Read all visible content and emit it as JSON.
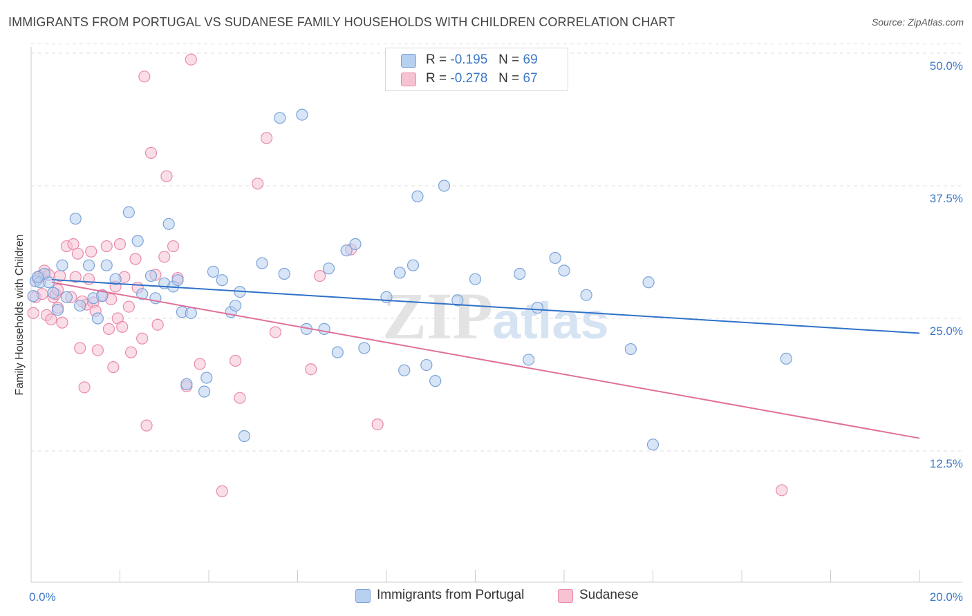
{
  "title": "IMMIGRANTS FROM PORTUGAL VS SUDANESE FAMILY HOUSEHOLDS WITH CHILDREN CORRELATION CHART",
  "source": "Source: ZipAtlas.com",
  "watermark": {
    "zip": "ZIP",
    "atlas": "atlas"
  },
  "legend": {
    "rows": [
      {
        "r_label": "R =",
        "r_value": "-0.195",
        "n_label": "N =",
        "n_value": "69"
      },
      {
        "r_label": "R =",
        "r_value": "-0.278",
        "n_label": "N =",
        "n_value": "67"
      }
    ]
  },
  "colors": {
    "blue_fill": "#b8d0f0",
    "blue_stroke": "#7aa3d8",
    "blue_line": "#3072c8",
    "pink_fill": "#f6c3d3",
    "pink_stroke": "#e98aaa",
    "pink_line": "#e0709a",
    "tick_text": "#3c78c8",
    "grid": "#dddddd"
  },
  "chart_data": {
    "type": "scatter",
    "title": "IMMIGRANTS FROM PORTUGAL VS SUDANESE FAMILY HOUSEHOLDS WITH CHILDREN CORRELATION CHART",
    "xlabel": "",
    "ylabel": "Family Households with Children",
    "xlim": [
      0,
      20
    ],
    "ylim": [
      0,
      51
    ],
    "x_tick_labels": [
      "0.0%",
      "20.0%"
    ],
    "y_ticks": [
      12.5,
      25.0,
      37.5,
      50.0
    ],
    "y_tick_labels": [
      "12.5%",
      "25.0%",
      "37.5%",
      "50.0%"
    ],
    "grid": "horizontal dashed",
    "legend_position": "top-center",
    "series": [
      {
        "name": "Immigrants from Portugal",
        "color": "#b8d0f0",
        "stats": {
          "R": -0.195,
          "N": 69
        },
        "trend": {
          "x": [
            0,
            20
          ],
          "y": [
            28.9,
            23.6
          ]
        },
        "points": [
          [
            0.05,
            27.1
          ],
          [
            0.1,
            28.5
          ],
          [
            0.2,
            28.4
          ],
          [
            0.3,
            29.2
          ],
          [
            0.4,
            28.4
          ],
          [
            0.5,
            27.4
          ],
          [
            0.6,
            25.8
          ],
          [
            0.7,
            30.0
          ],
          [
            0.8,
            27.0
          ],
          [
            1.0,
            34.4
          ],
          [
            1.1,
            26.2
          ],
          [
            1.3,
            30.0
          ],
          [
            1.4,
            26.9
          ],
          [
            1.5,
            25.0
          ],
          [
            1.6,
            27.1
          ],
          [
            1.7,
            30.0
          ],
          [
            1.9,
            28.7
          ],
          [
            2.2,
            35.0
          ],
          [
            2.4,
            32.3
          ],
          [
            2.5,
            27.3
          ],
          [
            2.7,
            29.0
          ],
          [
            2.8,
            26.9
          ],
          [
            3.0,
            28.3
          ],
          [
            3.1,
            33.9
          ],
          [
            3.2,
            28.0
          ],
          [
            3.3,
            28.6
          ],
          [
            3.4,
            25.6
          ],
          [
            3.5,
            18.8
          ],
          [
            3.6,
            25.5
          ],
          [
            3.9,
            18.1
          ],
          [
            3.95,
            19.4
          ],
          [
            4.1,
            29.4
          ],
          [
            4.3,
            28.6
          ],
          [
            4.5,
            25.6
          ],
          [
            4.6,
            26.2
          ],
          [
            4.7,
            27.5
          ],
          [
            4.8,
            13.9
          ],
          [
            5.2,
            30.2
          ],
          [
            5.6,
            43.9
          ],
          [
            5.7,
            29.2
          ],
          [
            6.1,
            44.2
          ],
          [
            6.2,
            24.0
          ],
          [
            6.6,
            24.0
          ],
          [
            6.7,
            29.7
          ],
          [
            6.9,
            21.8
          ],
          [
            7.1,
            31.4
          ],
          [
            7.3,
            32.0
          ],
          [
            7.5,
            22.2
          ],
          [
            8.0,
            27.0
          ],
          [
            8.3,
            29.3
          ],
          [
            8.4,
            20.1
          ],
          [
            8.6,
            30.0
          ],
          [
            8.7,
            36.5
          ],
          [
            8.9,
            20.6
          ],
          [
            9.1,
            19.1
          ],
          [
            9.3,
            37.5
          ],
          [
            9.6,
            26.7
          ],
          [
            10.0,
            28.7
          ],
          [
            11.0,
            29.2
          ],
          [
            11.2,
            21.1
          ],
          [
            11.4,
            26.0
          ],
          [
            11.8,
            30.7
          ],
          [
            12.0,
            29.5
          ],
          [
            12.5,
            27.2
          ],
          [
            13.5,
            22.1
          ],
          [
            13.9,
            28.4
          ],
          [
            14.0,
            13.1
          ],
          [
            17.0,
            21.2
          ],
          [
            0.15,
            28.9
          ]
        ]
      },
      {
        "name": "Sudanese",
        "color": "#f6c3d3",
        "stats": {
          "R": -0.278,
          "N": 67
        },
        "trend": {
          "x": [
            0,
            20
          ],
          "y": [
            29.1,
            13.7
          ]
        },
        "points": [
          [
            0.05,
            25.5
          ],
          [
            0.1,
            27.0
          ],
          [
            0.2,
            29.0
          ],
          [
            0.3,
            29.5
          ],
          [
            0.35,
            25.3
          ],
          [
            0.4,
            29.1
          ],
          [
            0.45,
            24.9
          ],
          [
            0.5,
            27.0
          ],
          [
            0.55,
            27.3
          ],
          [
            0.6,
            27.7
          ],
          [
            0.65,
            29.0
          ],
          [
            0.7,
            24.6
          ],
          [
            0.8,
            31.8
          ],
          [
            0.9,
            27.0
          ],
          [
            0.95,
            32.0
          ],
          [
            1.0,
            28.9
          ],
          [
            1.05,
            31.1
          ],
          [
            1.1,
            22.2
          ],
          [
            1.2,
            18.5
          ],
          [
            1.25,
            26.3
          ],
          [
            1.3,
            28.7
          ],
          [
            1.35,
            31.3
          ],
          [
            1.4,
            26.5
          ],
          [
            1.5,
            22.0
          ],
          [
            1.6,
            27.2
          ],
          [
            1.7,
            31.8
          ],
          [
            1.75,
            24.0
          ],
          [
            1.85,
            20.4
          ],
          [
            1.9,
            28.0
          ],
          [
            1.95,
            25.0
          ],
          [
            2.0,
            32.0
          ],
          [
            2.05,
            24.2
          ],
          [
            2.1,
            28.9
          ],
          [
            2.2,
            26.1
          ],
          [
            2.25,
            21.8
          ],
          [
            2.35,
            30.6
          ],
          [
            2.5,
            23.1
          ],
          [
            2.55,
            47.8
          ],
          [
            2.6,
            14.9
          ],
          [
            2.7,
            40.6
          ],
          [
            2.8,
            29.1
          ],
          [
            2.85,
            24.4
          ],
          [
            3.0,
            30.8
          ],
          [
            3.05,
            38.4
          ],
          [
            3.2,
            31.8
          ],
          [
            3.3,
            28.8
          ],
          [
            3.5,
            18.6
          ],
          [
            3.6,
            49.4
          ],
          [
            3.8,
            20.7
          ],
          [
            4.3,
            8.7
          ],
          [
            4.6,
            21.0
          ],
          [
            4.7,
            17.5
          ],
          [
            5.1,
            37.7
          ],
          [
            5.3,
            42.0
          ],
          [
            5.5,
            23.7
          ],
          [
            6.3,
            20.2
          ],
          [
            6.5,
            29.0
          ],
          [
            7.2,
            31.5
          ],
          [
            7.8,
            15.0
          ],
          [
            16.9,
            8.8
          ],
          [
            0.25,
            27.3
          ],
          [
            0.15,
            28.7
          ],
          [
            0.6,
            26.0
          ],
          [
            1.15,
            26.6
          ],
          [
            1.45,
            25.7
          ],
          [
            1.8,
            26.8
          ],
          [
            2.4,
            27.9
          ]
        ]
      }
    ]
  }
}
